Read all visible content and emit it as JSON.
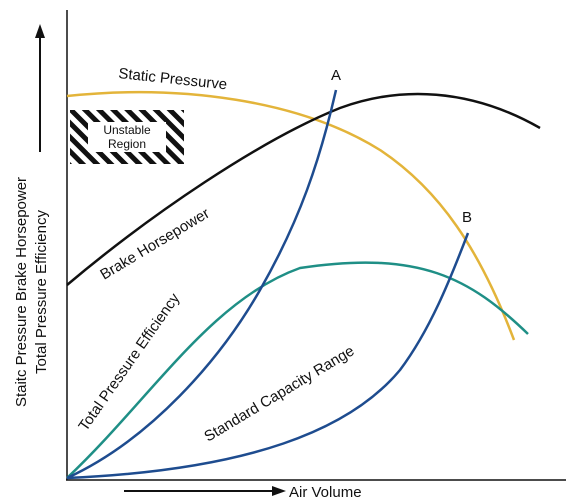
{
  "chart_data": {
    "type": "line",
    "xlabel": "Air Volume",
    "ylabel": [
      "Staitc Pressure Brake Horsepower",
      "Total Pressure Efficiency"
    ],
    "unstable_region_label": [
      "Unstable",
      "Region"
    ],
    "series": [
      {
        "name": "Static Pressurve",
        "color": "#e3b43a"
      },
      {
        "name": "Brake Horsepower",
        "color": "#111111"
      },
      {
        "name": "Total Pressure Efficiency",
        "color": "#1f8f86"
      },
      {
        "name": "A",
        "color": "#1e4c8f"
      },
      {
        "name": "B",
        "color": "#1e4c8f"
      }
    ],
    "range_label": "Standard Capacity Range"
  }
}
